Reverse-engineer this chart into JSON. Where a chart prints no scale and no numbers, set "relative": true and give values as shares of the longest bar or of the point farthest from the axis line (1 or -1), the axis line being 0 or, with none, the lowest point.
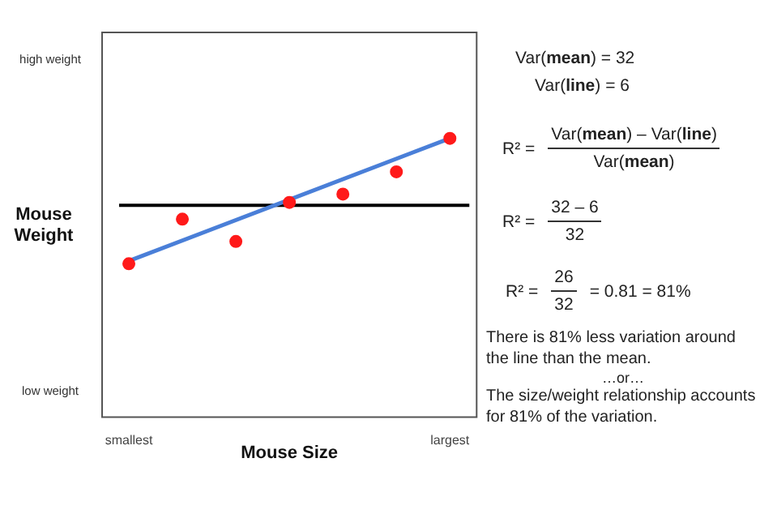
{
  "chart_data": {
    "type": "scatter",
    "relative": true,
    "xlabel": "Mouse Size",
    "ylabel": "Mouse Weight",
    "categories": [
      "smallest",
      null,
      null,
      null,
      null,
      null,
      "largest"
    ],
    "series": [
      {
        "color": "#ff1a1a",
        "values": [
          0.55,
          0.71,
          0.63,
          0.77,
          0.8,
          0.88,
          1.0
        ]
      },
      {
        "type": "line",
        "marker": "none",
        "color": "#4a7fd8",
        "values": [
          0.56,
          null,
          null,
          null,
          null,
          null,
          1.0
        ]
      }
    ],
    "ref_lines": [
      {
        "axis": "y",
        "value": 0.76,
        "color": "#000000"
      }
    ],
    "grid": false,
    "legend": false,
    "marker": "circle",
    "annotations": [
      "high weight",
      "low weight",
      "Var(mean) = 32",
      "Var(line) = 6",
      "R² =",
      "Var(mean) – Var(line)",
      "Var(mean)",
      "R² =",
      "32 – 6",
      "32",
      "R² =",
      "26",
      "32",
      "= 0.81 = 81%",
      "There is 81% less variation around the line than the mean.",
      "…or…",
      "The size/weight relationship accounts for 81% of the variation."
    ]
  }
}
